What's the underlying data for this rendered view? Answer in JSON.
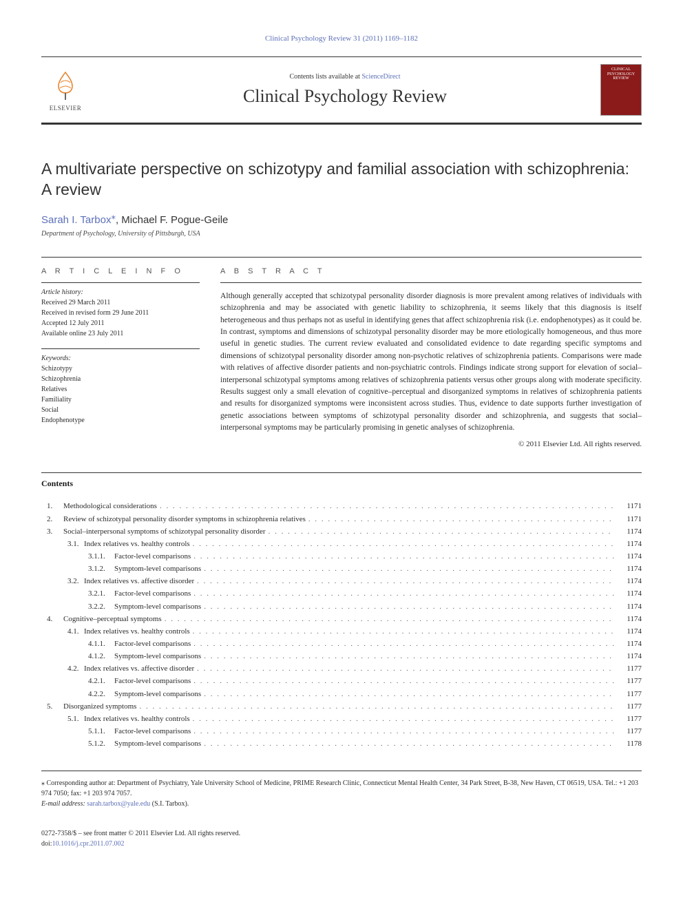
{
  "top_link": "Clinical Psychology Review 31 (2011) 1169–1182",
  "header": {
    "contents_prefix": "Contents lists available at ",
    "contents_link": "ScienceDirect",
    "journal_name": "Clinical Psychology Review",
    "elsevier_label": "ELSEVIER",
    "cover_text": "CLINICAL PSYCHOLOGY REVIEW"
  },
  "article": {
    "title": "A multivariate perspective on schizotypy and familial association with schizophrenia: A review",
    "authors": "Sarah I. Tarbox",
    "author2": ", Michael F. Pogue-Geile",
    "affiliation": "Department of Psychology, University of Pittsburgh, USA"
  },
  "info_label": "A R T I C L E   I N F O",
  "history_label": "Article history:",
  "history": [
    "Received 29 March 2011",
    "Received in revised form 29 June 2011",
    "Accepted 12 July 2011",
    "Available online 23 July 2011"
  ],
  "keywords_label": "Keywords:",
  "keywords": [
    "Schizotypy",
    "Schizophrenia",
    "Relatives",
    "Familiality",
    "Social",
    "Endophenotype"
  ],
  "abstract_label": "A B S T R A C T",
  "abstract_text": "Although generally accepted that schizotypal personality disorder diagnosis is more prevalent among relatives of individuals with schizophrenia and may be associated with genetic liability to schizophrenia, it seems likely that this diagnosis is itself heterogeneous and thus perhaps not as useful in identifying genes that affect schizophrenia risk (i.e. endophenotypes) as it could be. In contrast, symptoms and dimensions of schizotypal personality disorder may be more etiologically homogeneous, and thus more useful in genetic studies. The current review evaluated and consolidated evidence to date regarding specific symptoms and dimensions of schizotypal personality disorder among non-psychotic relatives of schizophrenia patients. Comparisons were made with relatives of affective disorder patients and non-psychiatric controls. Findings indicate strong support for elevation of social–interpersonal schizotypal symptoms among relatives of schizophrenia patients versus other groups along with moderate specificity. Results suggest only a small elevation of cognitive–perceptual and disorganized symptoms in relatives of schizophrenia patients and results for disorganized symptoms were inconsistent across studies. Thus, evidence to date supports further investigation of genetic associations between symptoms of schizotypal personality disorder and schizophrenia, and suggests that social–interpersonal symptoms may be particularly promising in genetic analyses of schizophrenia.",
  "copyright": "© 2011 Elsevier Ltd. All rights reserved.",
  "contents_header": "Contents",
  "toc": [
    {
      "l": 1,
      "n": "1.",
      "t": "Methodological considerations",
      "p": "1171"
    },
    {
      "l": 1,
      "n": "2.",
      "t": "Review of schizotypal personality disorder symptoms in schizophrenia relatives",
      "p": "1171"
    },
    {
      "l": 1,
      "n": "3.",
      "t": "Social–interpersonal symptoms of schizotypal personality disorder",
      "p": "1174"
    },
    {
      "l": 2,
      "n": "3.1.",
      "t": "Index relatives vs. healthy controls",
      "p": "1174"
    },
    {
      "l": 3,
      "n": "3.1.1.",
      "t": "Factor-level comparisons",
      "p": "1174"
    },
    {
      "l": 3,
      "n": "3.1.2.",
      "t": "Symptom-level comparisons",
      "p": "1174"
    },
    {
      "l": 2,
      "n": "3.2.",
      "t": "Index relatives vs. affective disorder",
      "p": "1174"
    },
    {
      "l": 3,
      "n": "3.2.1.",
      "t": "Factor-level comparisons",
      "p": "1174"
    },
    {
      "l": 3,
      "n": "3.2.2.",
      "t": "Symptom-level comparisons",
      "p": "1174"
    },
    {
      "l": 1,
      "n": "4.",
      "t": "Cognitive–perceptual symptoms",
      "p": "1174"
    },
    {
      "l": 2,
      "n": "4.1.",
      "t": "Index relatives vs. healthy controls",
      "p": "1174"
    },
    {
      "l": 3,
      "n": "4.1.1.",
      "t": "Factor-level comparisons",
      "p": "1174"
    },
    {
      "l": 3,
      "n": "4.1.2.",
      "t": "Symptom-level comparisons",
      "p": "1174"
    },
    {
      "l": 2,
      "n": "4.2.",
      "t": "Index relatives vs. affective disorder",
      "p": "1177"
    },
    {
      "l": 3,
      "n": "4.2.1.",
      "t": "Factor-level comparisons",
      "p": "1177"
    },
    {
      "l": 3,
      "n": "4.2.2.",
      "t": "Symptom-level comparisons",
      "p": "1177"
    },
    {
      "l": 1,
      "n": "5.",
      "t": "Disorganized symptoms",
      "p": "1177"
    },
    {
      "l": 2,
      "n": "5.1.",
      "t": "Index relatives vs. healthy controls",
      "p": "1177"
    },
    {
      "l": 3,
      "n": "5.1.1.",
      "t": "Factor-level comparisons",
      "p": "1177"
    },
    {
      "l": 3,
      "n": "5.1.2.",
      "t": "Symptom-level comparisons",
      "p": "1178"
    }
  ],
  "footer": {
    "star": "⁎",
    "corresponding": " Corresponding author at: Department of Psychiatry, Yale University School of Medicine, PRIME Research Clinic, Connecticut Mental Health Center, 34 Park Street, B-38, New Haven, CT 06519, USA. Tel.: +1 203 974 7050; fax: +1 203 974 7057.",
    "email_label": "E-mail address: ",
    "email": "sarah.tarbox@yale.edu",
    "email_suffix": " (S.I. Tarbox)."
  },
  "bottom": {
    "issn": "0272-7358/$ – see front matter © 2011 Elsevier Ltd. All rights reserved.",
    "doi_prefix": "doi:",
    "doi": "10.1016/j.cpr.2011.07.002"
  },
  "colors": {
    "link": "#5c6fb8",
    "text": "#2a2a2a",
    "cover_bg": "#8b1a1a"
  }
}
